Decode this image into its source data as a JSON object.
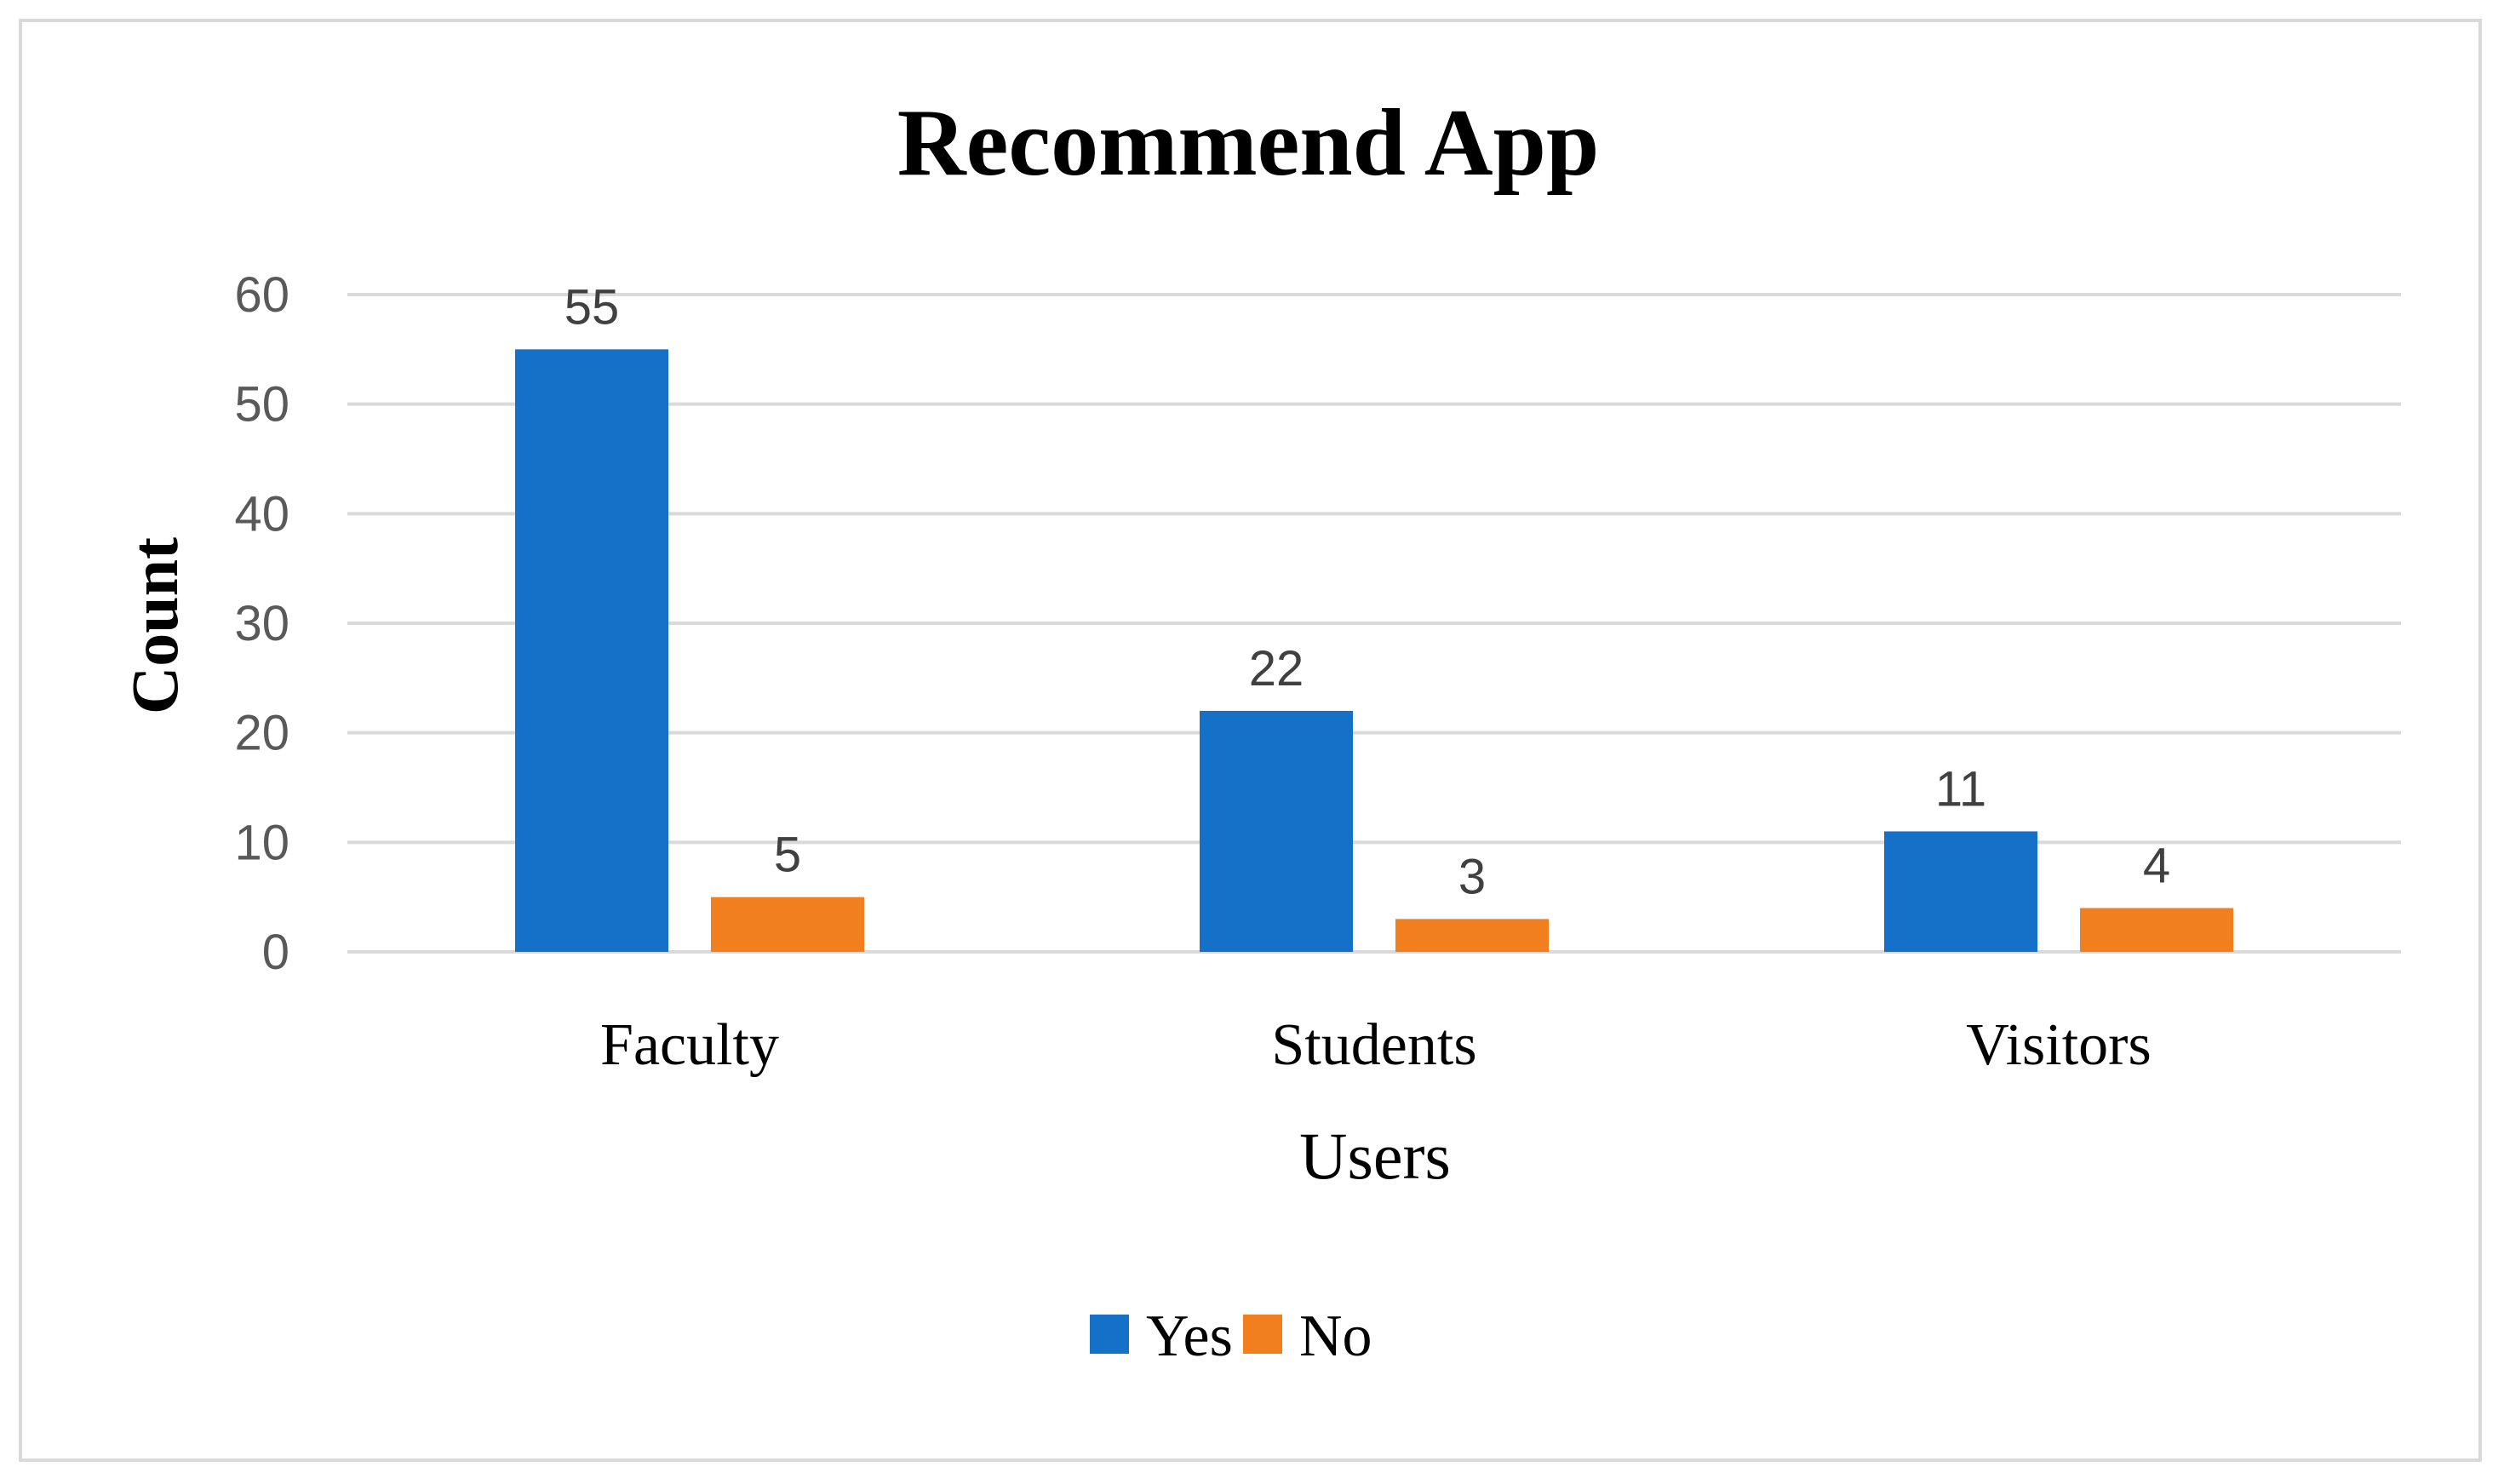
{
  "chart_data": {
    "type": "bar",
    "title": "Recommend App",
    "xlabel": "Users",
    "ylabel": "Count",
    "categories": [
      "Faculty",
      "Students",
      "Visitors"
    ],
    "series": [
      {
        "name": "Yes",
        "color": "#1570c8",
        "values": [
          55,
          22,
          11
        ]
      },
      {
        "name": "No",
        "color": "#f27f1e",
        "values": [
          5,
          3,
          4
        ]
      }
    ],
    "ylim": [
      0,
      60
    ],
    "yticks": [
      0,
      10,
      20,
      30,
      40,
      50,
      60
    ],
    "grid": true,
    "legend_position": "bottom",
    "data_labels": true
  }
}
